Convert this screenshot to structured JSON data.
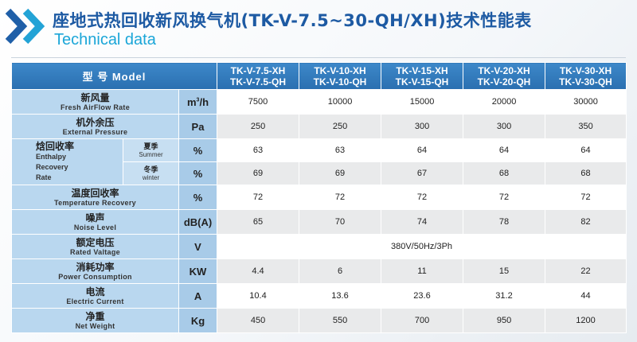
{
  "header": {
    "title": "座地式热回收新风换气机(TK-V-7.5~30-QH/XH)技术性能表",
    "subtitle": "Technical data"
  },
  "table": {
    "model_header": "型 号 Model",
    "models": [
      {
        "xh": "TK-V-7.5-XH",
        "qh": "TK-V-7.5-QH"
      },
      {
        "xh": "TK-V-10-XH",
        "qh": "TK-V-10-QH"
      },
      {
        "xh": "TK-V-15-XH",
        "qh": "TK-V-15-QH"
      },
      {
        "xh": "TK-V-20-XH",
        "qh": "TK-V-20-QH"
      },
      {
        "xh": "TK-V-30-XH",
        "qh": "TK-V-30-QH"
      }
    ],
    "rows": {
      "airflow": {
        "cn": "新风量",
        "en": "Fresh AirFlow Rate",
        "unit": "m",
        "unit_sup": "3",
        "unit_tail": "/h",
        "values": [
          "7500",
          "10000",
          "15000",
          "20000",
          "30000"
        ]
      },
      "pressure": {
        "cn": "机外余压",
        "en": "External Pressure",
        "unit": "Pa",
        "values": [
          "250",
          "250",
          "300",
          "300",
          "350"
        ]
      },
      "enthalpy": {
        "cn": "焓回收率",
        "en1": "Enthalpy",
        "en2": "Recovery",
        "en3": "Rate",
        "summer": {
          "cn": "夏季",
          "en": "Summer",
          "unit": "%",
          "values": [
            "63",
            "63",
            "64",
            "64",
            "64"
          ]
        },
        "winter": {
          "cn": "冬季",
          "en": "winter",
          "unit": "%",
          "values": [
            "69",
            "69",
            "67",
            "68",
            "68"
          ]
        }
      },
      "temp_recovery": {
        "cn": "温度回收率",
        "en": "Temperature Recovery",
        "unit": "%",
        "values": [
          "72",
          "72",
          "72",
          "72",
          "72"
        ]
      },
      "noise": {
        "cn": "噪声",
        "en": "Noise Level",
        "unit": "dB(A)",
        "values": [
          "65",
          "70",
          "74",
          "78",
          "82"
        ]
      },
      "voltage": {
        "cn": "额定电压",
        "en": "Rated Valtage",
        "unit": "V",
        "value": "380V/50Hz/3Ph"
      },
      "power": {
        "cn": "消耗功率",
        "en": "Power Consumption",
        "unit": "KW",
        "values": [
          "4.4",
          "6",
          "11",
          "15",
          "22"
        ]
      },
      "current": {
        "cn": "电流",
        "en": "Electric Current",
        "unit": "A",
        "values": [
          "10.4",
          "13.6",
          "23.6",
          "31.2",
          "44"
        ]
      },
      "weight": {
        "cn": "净重",
        "en": "Net Weight",
        "unit": "Kg",
        "values": [
          "450",
          "550",
          "700",
          "950",
          "1200"
        ]
      }
    }
  },
  "colors": {
    "title": "#1d5aa3",
    "subtitle": "#1ba6d8",
    "header_bg": "#2a6fb0",
    "param_bg": "#b9d7ef",
    "alt_row": "#e9eaeb"
  }
}
